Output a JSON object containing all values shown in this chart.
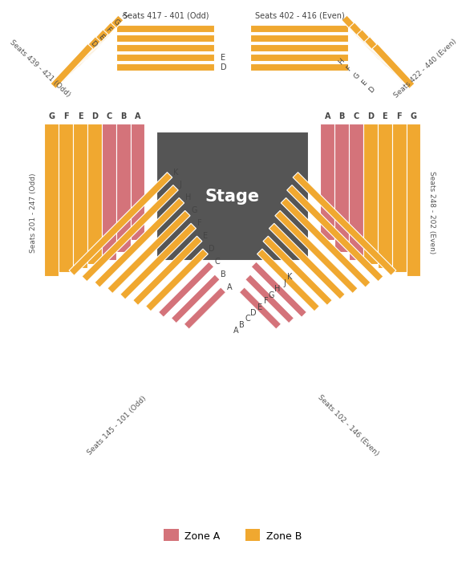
{
  "zone_a_color": "#d4737a",
  "zone_b_color": "#f0a830",
  "stage_color": "#555555",
  "stage_label": "Stage",
  "background_color": "#ffffff",
  "legend_zone_a": "Zone A",
  "legend_zone_b": "Zone B",
  "top_left_label": "Seats 439 - 421 (Odd)",
  "top_right_label": "Seats 422 - 440 (Even)",
  "top_center_odd_label": "Seats 417 - 401 (Odd)",
  "top_center_even_label": "Seats 402 - 416 (Even)",
  "mid_left_label": "Seats 201 - 247 (Odd)",
  "mid_right_label": "Seats 248 - 202 (Even)",
  "bot_left_label": "Seats 145 - 101 (Odd)",
  "bot_right_label": "Seats 102 - 146 (Even)",
  "top_left_rows": [
    "H",
    "G",
    "F",
    "E",
    "D"
  ],
  "top_right_rows": [
    "H",
    "F",
    "G",
    "E",
    "D"
  ],
  "mid_left_rows": [
    "G",
    "F",
    "E",
    "D",
    "C",
    "B",
    "A"
  ],
  "mid_right_rows": [
    "A",
    "B",
    "C",
    "D",
    "E",
    "F",
    "G"
  ],
  "bot_rows": [
    "A",
    "B",
    "C",
    "D",
    "E",
    "F",
    "G",
    "H",
    "J",
    "K"
  ]
}
